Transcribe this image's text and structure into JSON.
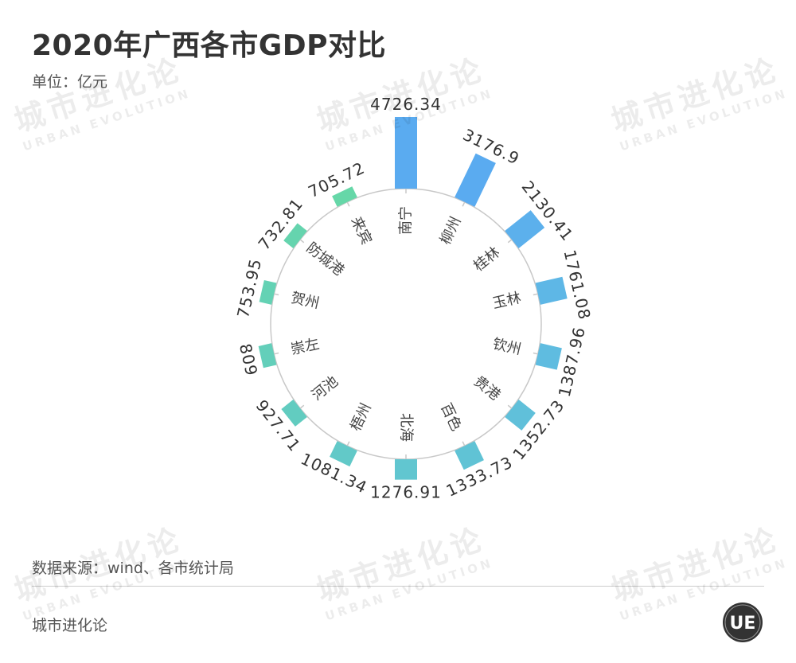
{
  "title": "2020年广西各市GDP对比",
  "unit": "单位：亿元",
  "source": "数据来源：wind、各市统计局",
  "brand": "城市进化论",
  "watermark": {
    "cn": "城市进化论",
    "en": "URBAN EVOLUTION"
  },
  "logo": {
    "text": "UE"
  },
  "chart_data": {
    "type": "bar",
    "layout": "radial",
    "categories": [
      "南宁",
      "柳州",
      "桂林",
      "玉林",
      "钦州",
      "贵港",
      "百色",
      "北海",
      "梧州",
      "河池",
      "崇左",
      "贺州",
      "防城港",
      "来宾"
    ],
    "values": [
      4726.34,
      3176.9,
      2130.41,
      1761.08,
      1387.96,
      1352.73,
      1333.73,
      1276.91,
      1081.34,
      927.71,
      809,
      753.95,
      732.81,
      705.72
    ],
    "value_labels": [
      "4726.34",
      "3176.9",
      "2130.41",
      "1761.08",
      "1387.96",
      "1352.73",
      "1333.73",
      "1276.91",
      "1081.34",
      "927.71",
      "809",
      "753.95",
      "732.81",
      "705.72"
    ],
    "colors": [
      "#5aabf0",
      "#5aabf0",
      "#5cb0ec",
      "#5eb7e6",
      "#5fbce0",
      "#60c0da",
      "#60c3d5",
      "#61c6d0",
      "#62c9c8",
      "#62ccc0",
      "#63cfba",
      "#64d2b4",
      "#65d4ae",
      "#66d7a8"
    ],
    "grid": false
  }
}
